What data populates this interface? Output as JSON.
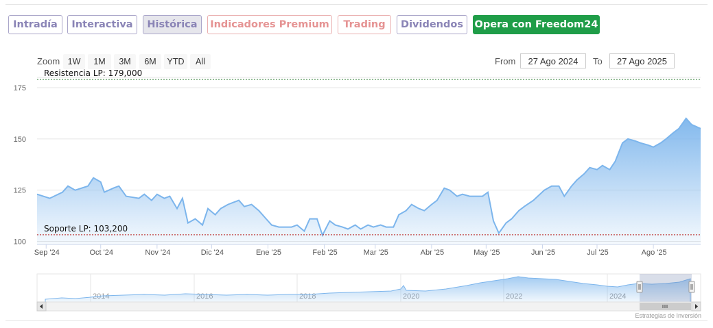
{
  "tabs": [
    "Intradía",
    "Interactiva",
    "Histórica",
    "Indicadores Premium",
    "Trading",
    "Dividendos",
    "Opera con Freedom24"
  ],
  "zoom": {
    "label": "Zoom",
    "buttons": [
      "1W",
      "1M",
      "3M",
      "6M",
      "YTD",
      "All"
    ]
  },
  "range": {
    "from_label": "From",
    "from_value": "27 Ago 2024",
    "to_label": "To",
    "to_value": "27 Ago 2025"
  },
  "credits": "Estrategias de Inversión",
  "colors": {
    "line": "#7cb5ec",
    "fill_top": "#7cb5ec",
    "resistance": "#2e7d32",
    "support": "#b71c1c",
    "active_tab_bg": "#e6e6ec",
    "cta": "#1f9d48"
  },
  "chart_data": {
    "type": "area",
    "x_ticks": [
      "Sep '24",
      "Oct '24",
      "Nov '24",
      "Dic '24",
      "Ene '25",
      "Feb '25",
      "Mar '25",
      "Abr '25",
      "May '25",
      "Jun '25",
      "Jul '25",
      "Ago '25"
    ],
    "y_ticks": [
      100,
      125,
      150,
      175
    ],
    "ylim": [
      98.5,
      180
    ],
    "grid": true,
    "x_range": [
      "2024-08-27",
      "2025-08-27"
    ],
    "series": [
      {
        "points": [
          [
            "2024-08-27",
            123
          ],
          [
            "2024-09-03",
            121
          ],
          [
            "2024-09-10",
            124
          ],
          [
            "2024-09-13",
            127
          ],
          [
            "2024-09-17",
            125
          ],
          [
            "2024-09-24",
            127
          ],
          [
            "2024-09-27",
            131
          ],
          [
            "2024-10-01",
            129
          ],
          [
            "2024-10-03",
            124
          ],
          [
            "2024-10-08",
            126
          ],
          [
            "2024-10-11",
            127
          ],
          [
            "2024-10-15",
            122
          ],
          [
            "2024-10-22",
            121
          ],
          [
            "2024-10-25",
            123
          ],
          [
            "2024-10-29",
            120
          ],
          [
            "2024-11-01",
            123
          ],
          [
            "2024-11-05",
            121
          ],
          [
            "2024-11-08",
            122
          ],
          [
            "2024-11-12",
            116
          ],
          [
            "2024-11-15",
            121
          ],
          [
            "2024-11-18",
            109
          ],
          [
            "2024-11-22",
            111
          ],
          [
            "2024-11-26",
            108
          ],
          [
            "2024-11-29",
            116
          ],
          [
            "2024-12-03",
            113
          ],
          [
            "2024-12-06",
            116
          ],
          [
            "2024-12-10",
            118
          ],
          [
            "2024-12-13",
            119
          ],
          [
            "2024-12-16",
            120
          ],
          [
            "2024-12-19",
            117
          ],
          [
            "2024-12-23",
            118
          ],
          [
            "2024-12-27",
            115
          ],
          [
            "2024-12-31",
            111
          ],
          [
            "2025-01-03",
            108
          ],
          [
            "2025-01-07",
            107
          ],
          [
            "2025-01-10",
            107
          ],
          [
            "2025-01-14",
            107
          ],
          [
            "2025-01-17",
            108
          ],
          [
            "2025-01-21",
            105
          ],
          [
            "2025-01-24",
            111
          ],
          [
            "2025-01-28",
            111
          ],
          [
            "2025-01-31",
            103
          ],
          [
            "2025-02-04",
            110
          ],
          [
            "2025-02-07",
            108
          ],
          [
            "2025-02-11",
            107
          ],
          [
            "2025-02-14",
            106
          ],
          [
            "2025-02-18",
            108
          ],
          [
            "2025-02-21",
            106
          ],
          [
            "2025-02-25",
            108
          ],
          [
            "2025-02-28",
            107
          ],
          [
            "2025-03-04",
            108
          ],
          [
            "2025-03-07",
            107
          ],
          [
            "2025-03-11",
            107
          ],
          [
            "2025-03-14",
            113
          ],
          [
            "2025-03-18",
            115
          ],
          [
            "2025-03-21",
            118
          ],
          [
            "2025-03-25",
            116
          ],
          [
            "2025-03-28",
            115
          ],
          [
            "2025-04-01",
            118
          ],
          [
            "2025-04-04",
            120
          ],
          [
            "2025-04-08",
            126
          ],
          [
            "2025-04-11",
            125
          ],
          [
            "2025-04-15",
            122
          ],
          [
            "2025-04-18",
            123
          ],
          [
            "2025-04-22",
            122
          ],
          [
            "2025-04-25",
            122
          ],
          [
            "2025-04-29",
            122
          ],
          [
            "2025-05-02",
            124
          ],
          [
            "2025-05-05",
            110
          ],
          [
            "2025-05-08",
            104
          ],
          [
            "2025-05-12",
            109
          ],
          [
            "2025-05-15",
            111
          ],
          [
            "2025-05-19",
            115
          ],
          [
            "2025-05-22",
            117
          ],
          [
            "2025-05-27",
            120
          ],
          [
            "2025-06-02",
            125
          ],
          [
            "2025-06-06",
            127
          ],
          [
            "2025-06-10",
            127
          ],
          [
            "2025-06-13",
            122
          ],
          [
            "2025-06-17",
            127
          ],
          [
            "2025-06-20",
            130
          ],
          [
            "2025-06-24",
            133
          ],
          [
            "2025-06-27",
            136
          ],
          [
            "2025-07-01",
            135
          ],
          [
            "2025-07-04",
            137
          ],
          [
            "2025-07-08",
            135
          ],
          [
            "2025-07-11",
            139
          ],
          [
            "2025-07-15",
            148
          ],
          [
            "2025-07-18",
            150
          ],
          [
            "2025-07-22",
            149
          ],
          [
            "2025-07-25",
            148
          ],
          [
            "2025-07-29",
            147
          ],
          [
            "2025-08-01",
            146
          ],
          [
            "2025-08-05",
            148
          ],
          [
            "2025-08-08",
            150
          ],
          [
            "2025-08-12",
            153
          ],
          [
            "2025-08-15",
            155
          ],
          [
            "2025-08-19",
            160
          ],
          [
            "2025-08-22",
            157
          ],
          [
            "2025-08-27",
            155
          ]
        ]
      }
    ],
    "annotations": [
      {
        "text": "Resistencia LP: 179,000",
        "value": 179
      },
      {
        "text": "Soporte LP: 103,200",
        "value": 103.2
      }
    ],
    "navigator": {
      "x_ticks": [
        "2014",
        "2016",
        "2018",
        "2020",
        "2022",
        "2024"
      ]
    }
  }
}
